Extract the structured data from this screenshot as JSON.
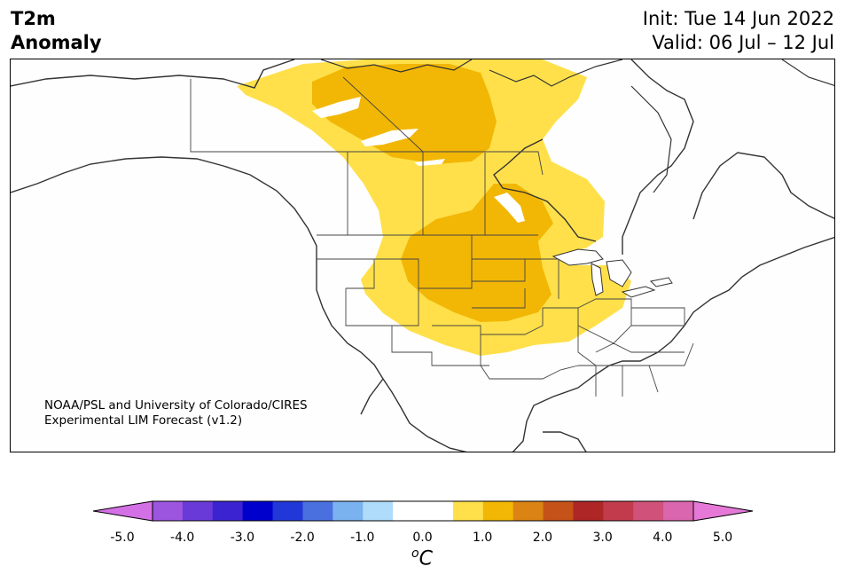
{
  "title": {
    "variable": "T2m",
    "type": "Anomaly",
    "init": "Init: Tue 14 Jun 2022",
    "valid": "Valid: 06 Jul – 12 Jul"
  },
  "credit": {
    "line1": "NOAA/PSL and University of Colorado/CIRES",
    "line2": "Experimental LIM Forecast (v1.2)"
  },
  "colorbar": {
    "unit_sup": "o",
    "unit": "C",
    "levels": [
      "-5.0",
      "-4.0",
      "-3.0",
      "-2.0",
      "-1.0",
      "0.0",
      "1.0",
      "2.0",
      "3.0",
      "4.0",
      "5.0"
    ],
    "colors": [
      "#d470e6",
      "#9b55de",
      "#6a3ad8",
      "#3b23d1",
      "#0000cc",
      "#2237d8",
      "#4a70e0",
      "#7ab2f0",
      "#aedcfa",
      "#ffffff",
      "#ffffff",
      "#ffe04a",
      "#f2b705",
      "#dc8413",
      "#c55218",
      "#ae2626",
      "#c23b4c",
      "#d0527a",
      "#db66b0",
      "#e679d8"
    ],
    "extend_low_color": "#d470e6",
    "extend_high_color": "#e679d8"
  },
  "map": {
    "region": "North America",
    "anomaly_colors": {
      "light": "#ffe04a",
      "medium": "#f2b705"
    }
  }
}
